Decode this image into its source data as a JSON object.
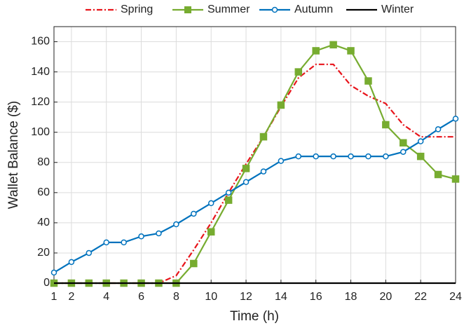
{
  "chart_data": {
    "type": "line",
    "x_label": "Time (h)",
    "y_label": "Wallet Balance ($)",
    "x": [
      1,
      2,
      3,
      4,
      5,
      6,
      7,
      8,
      9,
      10,
      11,
      12,
      13,
      14,
      15,
      16,
      17,
      18,
      19,
      20,
      21,
      22,
      23,
      24
    ],
    "xlim": [
      1,
      24
    ],
    "xticks": [
      1,
      2,
      4,
      6,
      8,
      10,
      12,
      14,
      16,
      18,
      20,
      22,
      24
    ],
    "ylim": [
      0,
      170
    ],
    "yticks": [
      0,
      20,
      40,
      60,
      80,
      100,
      120,
      140,
      160
    ],
    "grid": true,
    "legend": "top",
    "series": [
      {
        "name": "Spring",
        "color": "#e8141b",
        "dash": "dashdot",
        "marker": null,
        "values": [
          0,
          0,
          0,
          0,
          0,
          0,
          0,
          5,
          22,
          40,
          60,
          79,
          97,
          117,
          136,
          145,
          145,
          131,
          124,
          119,
          105,
          97,
          97,
          97
        ]
      },
      {
        "name": "Summer",
        "color": "#77ac30",
        "dash": "solid",
        "marker": "square",
        "values": [
          0,
          0,
          0,
          0,
          0,
          0,
          0,
          0,
          13,
          34,
          55,
          76,
          97,
          118,
          140,
          154,
          158,
          154,
          134,
          105,
          93,
          84,
          72,
          69
        ]
      },
      {
        "name": "Autumn",
        "color": "#0072bd",
        "dash": "solid",
        "marker": "circle",
        "values": [
          7,
          14,
          20,
          27,
          27,
          31,
          33,
          39,
          46,
          53,
          60,
          67,
          74,
          81,
          84,
          84,
          84,
          84,
          84,
          84,
          87,
          94,
          102,
          109
        ]
      },
      {
        "name": "Winter",
        "color": "#000000",
        "dash": "solid",
        "marker": null,
        "values": [
          0,
          0,
          0,
          0,
          0,
          0,
          0,
          0,
          0,
          0,
          0,
          0,
          0,
          0,
          0,
          0,
          0,
          0,
          0,
          0,
          0,
          0,
          0,
          0
        ]
      }
    ]
  }
}
